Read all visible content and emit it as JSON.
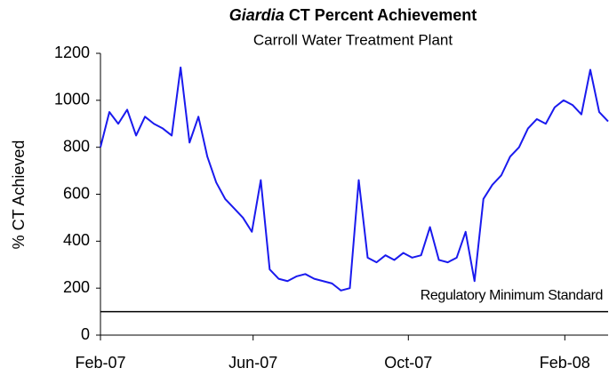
{
  "chart_data": {
    "type": "line",
    "title": {
      "italic": "Giardia",
      "rest": "CT Percent Achievement"
    },
    "subtitle": "Carroll Water Treatment Plant",
    "y_label": "% CT Achieved",
    "x": [
      0,
      1,
      2,
      3,
      4,
      5,
      6,
      7,
      8,
      9,
      10,
      11,
      12,
      13,
      14,
      15,
      16,
      17,
      18,
      19,
      20,
      21,
      22,
      23,
      24,
      25,
      26,
      27,
      28,
      29,
      30,
      31,
      32,
      33,
      34,
      35,
      36,
      37,
      38,
      39,
      40,
      41,
      42,
      43,
      44,
      45,
      46,
      47,
      48,
      49,
      50,
      51,
      52,
      53,
      54,
      55,
      56,
      57
    ],
    "series": [
      {
        "color": "#1a1aee",
        "values": [
          800,
          950,
          900,
          960,
          850,
          930,
          900,
          880,
          850,
          1140,
          820,
          930,
          760,
          650,
          580,
          540,
          500,
          440,
          660,
          280,
          240,
          230,
          250,
          260,
          240,
          230,
          220,
          190,
          200,
          660,
          330,
          310,
          340,
          320,
          350,
          330,
          340,
          460,
          320,
          310,
          330,
          440,
          230,
          580,
          640,
          680,
          760,
          800,
          880,
          920,
          900,
          970,
          1000,
          980,
          940,
          1130,
          950,
          910
        ]
      }
    ],
    "xlim": [
      0,
      57
    ],
    "xticks": [
      {
        "value": 0,
        "label": "Feb-07"
      },
      {
        "value": 17.14,
        "label": "Jun-07"
      },
      {
        "value": 34.57,
        "label": "Oct-07"
      },
      {
        "value": 52.14,
        "label": "Feb-08"
      }
    ],
    "ylim": [
      0,
      1200
    ],
    "yticks": [
      0,
      200,
      400,
      600,
      800,
      1000,
      1200
    ],
    "grid": false,
    "reference_line": {
      "value": 100,
      "label": "Regulatory Minimum Standard",
      "color": "#000000"
    }
  }
}
